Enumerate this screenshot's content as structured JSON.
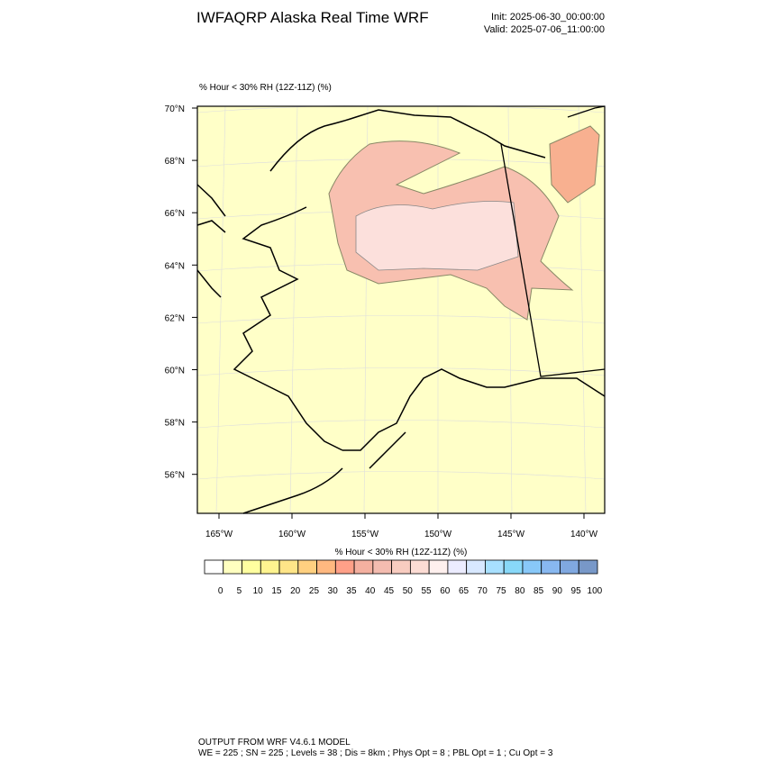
{
  "header": {
    "title": "IWFAQRP Alaska Real Time WRF",
    "init": "Init: 2025-06-30_00:00:00",
    "valid": "Valid: 2025-07-06_11:00:00"
  },
  "plot": {
    "title": "% Hour < 30% RH (12Z-11Z)   (%)",
    "lat_labels": [
      "70°N",
      "68°N",
      "66°N",
      "64°N",
      "62°N",
      "60°N",
      "58°N",
      "56°N"
    ],
    "lon_labels": [
      "165°W",
      "160°W",
      "155°W",
      "150°W",
      "145°W",
      "140°W"
    ]
  },
  "colorbar": {
    "title": "% Hour < 30% RH (12Z-11Z)  (%)",
    "levels": [
      0,
      5,
      10,
      15,
      20,
      25,
      30,
      35,
      40,
      45,
      50,
      55,
      60,
      65,
      70,
      75,
      80,
      85,
      90,
      95,
      100
    ],
    "colors": [
      "#ffffff",
      "#ffffc0",
      "#ffffa0",
      "#fff490",
      "#ffe588",
      "#ffd080",
      "#ffb880",
      "#ffa088",
      "#f4b0a0",
      "#f4bcb0",
      "#f8ccc0",
      "#fcdcd4",
      "#fff0ee",
      "#ececff",
      "#d8e8ff",
      "#a8e0ff",
      "#88d8f8",
      "#88c8f8",
      "#88b8f0",
      "#80a8e0",
      "#7898c8"
    ]
  },
  "footer": {
    "line1": "OUTPUT FROM WRF V4.6.1 MODEL",
    "line2": "WE = 225 ; SN = 225 ; Levels = 38 ; Dis = 8km ; Phys Opt = 8 ; PBL Opt = 1 ; Cu Opt = 3"
  }
}
